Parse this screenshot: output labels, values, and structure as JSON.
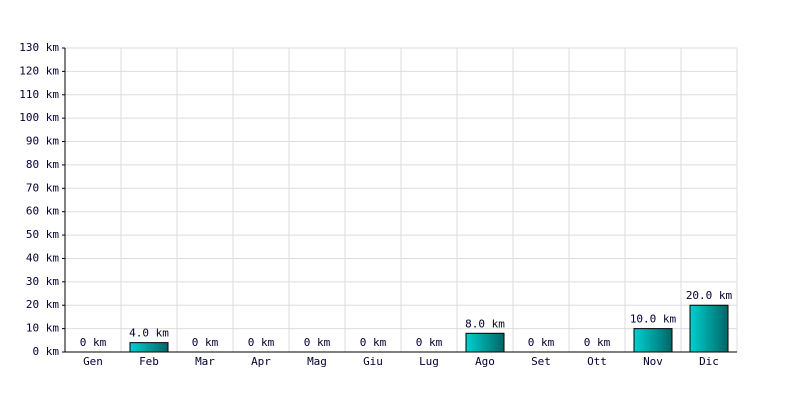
{
  "chart_data": {
    "type": "bar",
    "categories": [
      "Gen",
      "Feb",
      "Mar",
      "Apr",
      "Mag",
      "Giu",
      "Lug",
      "Ago",
      "Set",
      "Ott",
      "Nov",
      "Dic"
    ],
    "values": [
      0,
      4,
      0,
      0,
      0,
      0,
      0,
      8,
      0,
      0,
      10,
      20
    ],
    "value_labels": [
      "0 km",
      "4.0 km",
      "0 km",
      "0 km",
      "0 km",
      "0 km",
      "0 km",
      "8.0 km",
      "0 km",
      "0 km",
      "10.0 km",
      "20.0 km"
    ],
    "color": "#00d0d0",
    "ylim": [
      0,
      130
    ],
    "yticks": [
      {
        "value": 0,
        "label": "0 km"
      },
      {
        "value": 10,
        "label": "10 km"
      },
      {
        "value": 20,
        "label": "20 km"
      },
      {
        "value": 30,
        "label": "30 km"
      },
      {
        "value": 40,
        "label": "40 km"
      },
      {
        "value": 50,
        "label": "50 km"
      },
      {
        "value": 60,
        "label": "60 km"
      },
      {
        "value": 70,
        "label": "70 km"
      },
      {
        "value": 80,
        "label": "80 km"
      },
      {
        "value": 90,
        "label": "90 km"
      },
      {
        "value": 100,
        "label": "100 km"
      },
      {
        "value": 110,
        "label": "110 km"
      },
      {
        "value": 120,
        "label": "120 km"
      },
      {
        "value": 130,
        "label": "130 km"
      }
    ],
    "grid": true
  }
}
